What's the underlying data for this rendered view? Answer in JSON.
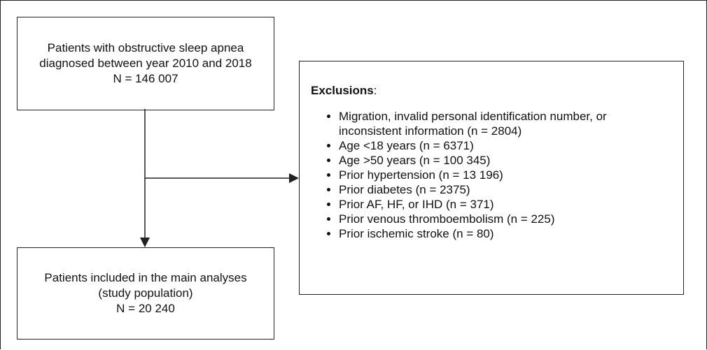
{
  "top_box": {
    "lines": [
      "Patients with obstructive sleep apnea",
      "diagnosed between year 2010 and 2018",
      "N = 146 007"
    ]
  },
  "bottom_box": {
    "lines": [
      "Patients included in the main analyses",
      "(study population)",
      "N = 20 240"
    ]
  },
  "exclusions": {
    "title": "Exclusions",
    "suffix": ":",
    "items": [
      "Migration, invalid personal identification number, or inconsistent  information (n = 2804)",
      "Age <18 years (n = 6371)",
      "Age >50 years (n = 100 345)",
      "Prior hypertension (n = 13 196)",
      "Prior diabetes (n = 2375)",
      "Prior AF, HF, or IHD (n = 371)",
      "Prior venous thromboembolism (n = 225)",
      "Prior ischemic stroke (n = 80)"
    ]
  }
}
